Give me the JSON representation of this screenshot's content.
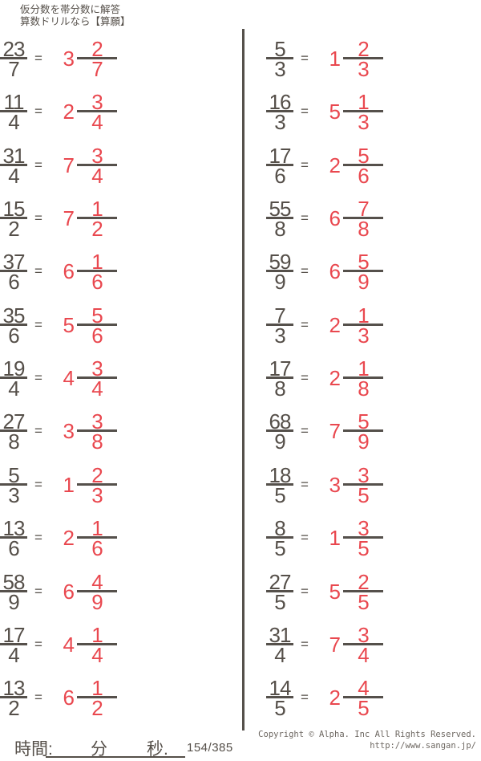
{
  "header": {
    "line1": "仮分数を帯分数に解答",
    "line2": "算数ドリルなら【算願】"
  },
  "symbols": {
    "equals": "="
  },
  "columns": {
    "left": [
      {
        "q_num": "23",
        "q_den": "7",
        "a_whole": "3",
        "a_num": "2",
        "a_den": "7"
      },
      {
        "q_num": "11",
        "q_den": "4",
        "a_whole": "2",
        "a_num": "3",
        "a_den": "4"
      },
      {
        "q_num": "31",
        "q_den": "4",
        "a_whole": "7",
        "a_num": "3",
        "a_den": "4"
      },
      {
        "q_num": "15",
        "q_den": "2",
        "a_whole": "7",
        "a_num": "1",
        "a_den": "2"
      },
      {
        "q_num": "37",
        "q_den": "6",
        "a_whole": "6",
        "a_num": "1",
        "a_den": "6"
      },
      {
        "q_num": "35",
        "q_den": "6",
        "a_whole": "5",
        "a_num": "5",
        "a_den": "6"
      },
      {
        "q_num": "19",
        "q_den": "4",
        "a_whole": "4",
        "a_num": "3",
        "a_den": "4"
      },
      {
        "q_num": "27",
        "q_den": "8",
        "a_whole": "3",
        "a_num": "3",
        "a_den": "8"
      },
      {
        "q_num": "5",
        "q_den": "3",
        "a_whole": "1",
        "a_num": "2",
        "a_den": "3"
      },
      {
        "q_num": "13",
        "q_den": "6",
        "a_whole": "2",
        "a_num": "1",
        "a_den": "6"
      },
      {
        "q_num": "58",
        "q_den": "9",
        "a_whole": "6",
        "a_num": "4",
        "a_den": "9"
      },
      {
        "q_num": "17",
        "q_den": "4",
        "a_whole": "4",
        "a_num": "1",
        "a_den": "4"
      },
      {
        "q_num": "13",
        "q_den": "2",
        "a_whole": "6",
        "a_num": "1",
        "a_den": "2"
      }
    ],
    "right": [
      {
        "q_num": "5",
        "q_den": "3",
        "a_whole": "1",
        "a_num": "2",
        "a_den": "3"
      },
      {
        "q_num": "16",
        "q_den": "3",
        "a_whole": "5",
        "a_num": "1",
        "a_den": "3"
      },
      {
        "q_num": "17",
        "q_den": "6",
        "a_whole": "2",
        "a_num": "5",
        "a_den": "6"
      },
      {
        "q_num": "55",
        "q_den": "8",
        "a_whole": "6",
        "a_num": "7",
        "a_den": "8"
      },
      {
        "q_num": "59",
        "q_den": "9",
        "a_whole": "6",
        "a_num": "5",
        "a_den": "9"
      },
      {
        "q_num": "7",
        "q_den": "3",
        "a_whole": "2",
        "a_num": "1",
        "a_den": "3"
      },
      {
        "q_num": "17",
        "q_den": "8",
        "a_whole": "2",
        "a_num": "1",
        "a_den": "8"
      },
      {
        "q_num": "68",
        "q_den": "9",
        "a_whole": "7",
        "a_num": "5",
        "a_den": "9"
      },
      {
        "q_num": "18",
        "q_den": "5",
        "a_whole": "3",
        "a_num": "3",
        "a_den": "5"
      },
      {
        "q_num": "8",
        "q_den": "5",
        "a_whole": "1",
        "a_num": "3",
        "a_den": "5"
      },
      {
        "q_num": "27",
        "q_den": "5",
        "a_whole": "5",
        "a_num": "2",
        "a_den": "5"
      },
      {
        "q_num": "31",
        "q_den": "4",
        "a_whole": "7",
        "a_num": "3",
        "a_den": "4"
      },
      {
        "q_num": "14",
        "q_den": "5",
        "a_whole": "2",
        "a_num": "4",
        "a_den": "5"
      }
    ]
  },
  "footer": {
    "time_label": "時間:",
    "minutes_label": "分",
    "seconds_label": "秒.",
    "counter": "154/385",
    "copyright_line1": "Copyright ©  Alpha. Inc All Rights Reserved.",
    "copyright_line2": "http://www.sangan.jp/"
  },
  "colors": {
    "ink": "#554F49",
    "answer_red": "#E9484F",
    "bar": "#55504B",
    "copyright_gray": "#6E6862"
  }
}
